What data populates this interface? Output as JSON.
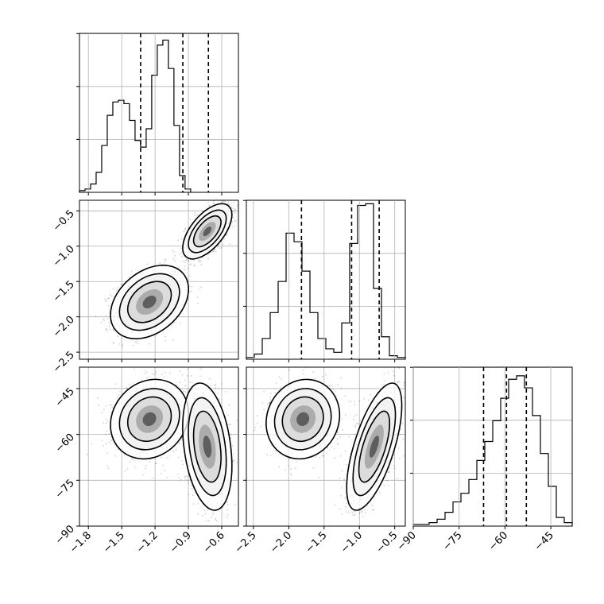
{
  "chart_data": {
    "type": "corner",
    "grid": true,
    "parameters": [
      {
        "range": [
          -1.88,
          -0.45
        ],
        "ticks": [
          -1.8,
          -1.5,
          -1.2,
          -0.9,
          -0.6
        ],
        "tick_labels": [
          "−1.8",
          "−1.5",
          "−1.2",
          "−0.9",
          "−0.6"
        ],
        "quantiles": [
          -1.33,
          -0.95,
          -0.72
        ],
        "histogram": {
          "edges_start": -1.88,
          "bin_width": 0.05,
          "counts": [
            1,
            2,
            5,
            12,
            28,
            46,
            54,
            55,
            53,
            43,
            31,
            27,
            38,
            70,
            88,
            91,
            74,
            40,
            10,
            2
          ]
        },
        "hist_ylim": [
          0,
          95
        ]
      },
      {
        "range": [
          -2.6,
          -0.35
        ],
        "ticks": [
          -2.5,
          -2.0,
          -1.5,
          -1.0,
          -0.5
        ],
        "tick_labels": [
          "−2.5",
          "−2.0",
          "−1.5",
          "−1.0",
          "−0.5"
        ],
        "quantiles": [
          -1.82,
          -1.11,
          -0.72
        ],
        "histogram": {
          "edges_start": -2.6,
          "bin_width": 0.1125,
          "counts": [
            1,
            3,
            12,
            27,
            45,
            73,
            68,
            51,
            27,
            12,
            6,
            4,
            21,
            67,
            89,
            90,
            41,
            13,
            2,
            1
          ]
        },
        "hist_ylim": [
          0,
          92
        ]
      },
      {
        "range": [
          -90,
          -38
        ],
        "ticks": [
          -90,
          -75,
          -60,
          -45
        ],
        "tick_labels": [
          "−90",
          "−75",
          "−60",
          "−45"
        ],
        "quantiles": [
          -67,
          -59.5,
          -53
        ],
        "histogram": {
          "edges_start": -90,
          "bin_width": 2.6,
          "counts": [
            1,
            1,
            2,
            4,
            8,
            14,
            19,
            27,
            38,
            49,
            61,
            74,
            85,
            87,
            80,
            64,
            42,
            23,
            5,
            2
          ]
        },
        "hist_ylim": [
          0,
          92
        ]
      }
    ],
    "density_panels": [
      {
        "x_param": 0,
        "y_param": 1,
        "modes": [
          {
            "mean": [
              -1.25,
              -1.79
            ],
            "sd": [
              0.135,
              0.2
            ],
            "rho": 0.35,
            "weight": 0.45
          },
          {
            "mean": [
              -0.73,
              -0.79
            ],
            "sd": [
              0.085,
              0.15
            ],
            "rho": 0.6,
            "weight": 0.55
          }
        ]
      },
      {
        "x_param": 0,
        "y_param": 2,
        "modes": [
          {
            "mean": [
              -1.25,
              -55
            ],
            "sd": [
              0.135,
              5
            ],
            "rho": 0.15,
            "weight": 0.45
          },
          {
            "mean": [
              -0.73,
              -64
            ],
            "sd": [
              0.085,
              8
            ],
            "rho": -0.3,
            "weight": 0.55
          }
        ]
      },
      {
        "x_param": 1,
        "y_param": 2,
        "modes": [
          {
            "mean": [
              -1.8,
              -55
            ],
            "sd": [
              0.2,
              5
            ],
            "rho": 0.1,
            "weight": 0.45
          },
          {
            "mean": [
              -0.79,
              -64
            ],
            "sd": [
              0.15,
              8
            ],
            "rho": 0.65,
            "weight": 0.55
          }
        ]
      }
    ]
  }
}
